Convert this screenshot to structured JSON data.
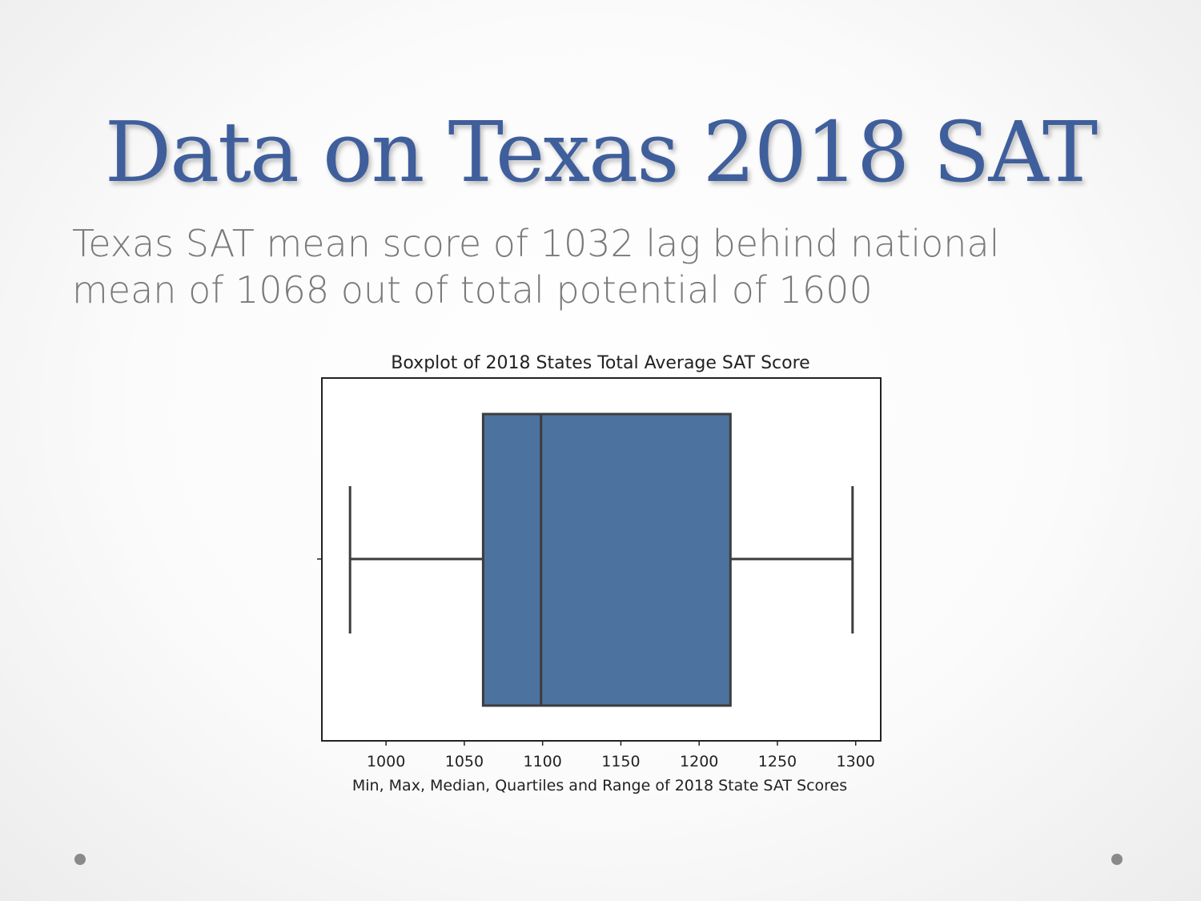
{
  "slide": {
    "title": "Data on Texas 2018 SAT",
    "body_line1": "Texas SAT mean score of 1032 lag behind national",
    "body_line2": "mean of 1068 out of total potential of 1600"
  },
  "colors": {
    "title": "#3f5e9c",
    "box_fill": "#4c72a0",
    "line": "#3d3d3d",
    "body_text": "#7a7a7a"
  },
  "chart_data": {
    "type": "boxplot",
    "title": "Boxplot of 2018 States Total Average SAT Score",
    "xlabel": "Min, Max, Median, Quartiles and Range of 2018 State SAT Scores",
    "ylabel": "",
    "xlim": [
      959,
      1316
    ],
    "xticks": [
      1000,
      1050,
      1100,
      1150,
      1200,
      1250,
      1300
    ],
    "box": {
      "min": 977,
      "q1": 1062,
      "median": 1099,
      "q3": 1220,
      "max": 1298
    },
    "grid": false
  }
}
